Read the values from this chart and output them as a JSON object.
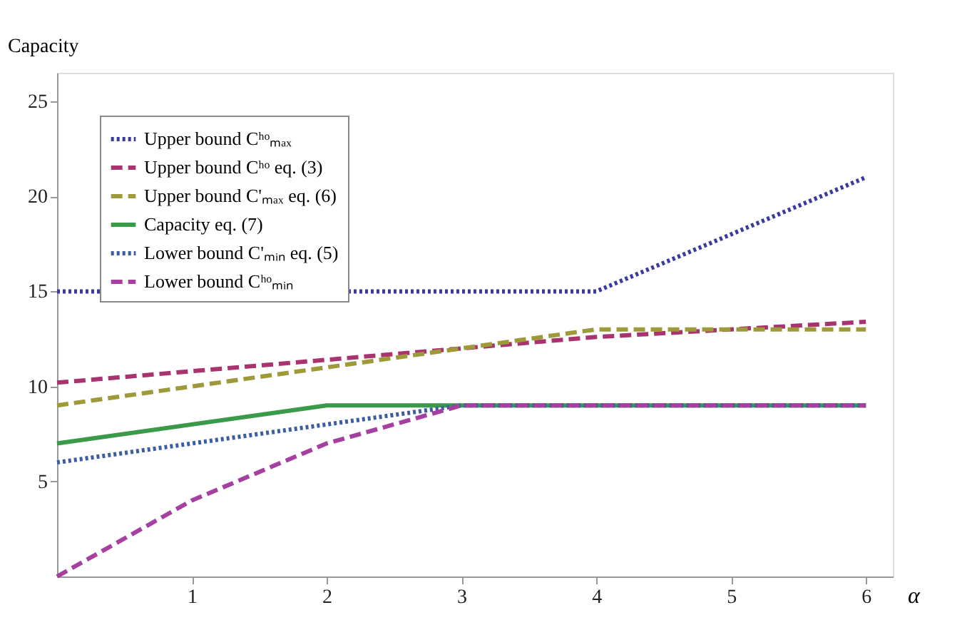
{
  "chart_data": {
    "type": "line",
    "xlabel": "α",
    "ylabel": "Capacity",
    "xlim": [
      0,
      6.2
    ],
    "xticks": [
      1,
      2,
      3,
      4,
      5,
      6
    ],
    "ylim": [
      0,
      26.5
    ],
    "yticks": [
      5,
      10,
      15,
      20,
      25
    ],
    "grid": false,
    "legend": "top left",
    "marker": "none",
    "series": [
      {
        "name": "Upper bound Cʰᵒₘₐₓ",
        "color": "#3b3b9e",
        "line_style": "dotted",
        "x": [
          0,
          4,
          6
        ],
        "values": [
          15,
          15,
          21
        ]
      },
      {
        "name": "Upper bound Cʰᵒ eq. (3)",
        "color": "#a8336f",
        "line_style": "dashed",
        "x": [
          0,
          1,
          2,
          3,
          4,
          5,
          6
        ],
        "values": [
          10.2,
          10.8,
          11.4,
          12,
          12.6,
          13,
          13.4
        ]
      },
      {
        "name": "Upper bound C'ₘₐₓ eq. (6)",
        "color": "#9e9a3a",
        "line_style": "dashed",
        "x": [
          0,
          2,
          3,
          4,
          6
        ],
        "values": [
          9,
          11,
          12,
          13,
          13
        ]
      },
      {
        "name": "Capacity eq. (7)",
        "color": "#3a9a4a",
        "line_style": "solid",
        "x": [
          0,
          2,
          6
        ],
        "values": [
          7,
          9,
          9
        ]
      },
      {
        "name": "Lower bound C'ₘᵢₙ eq. (5)",
        "color": "#3b5ea0",
        "line_style": "dotted",
        "x": [
          0,
          2,
          3,
          6
        ],
        "values": [
          6,
          8,
          9,
          9
        ]
      },
      {
        "name": "Lower bound Cʰᵒₘᵢₙ",
        "color": "#a640a0",
        "line_style": "dashed",
        "x": [
          0,
          1,
          2,
          3,
          6
        ],
        "values": [
          0,
          4,
          7,
          9,
          9
        ]
      }
    ]
  }
}
